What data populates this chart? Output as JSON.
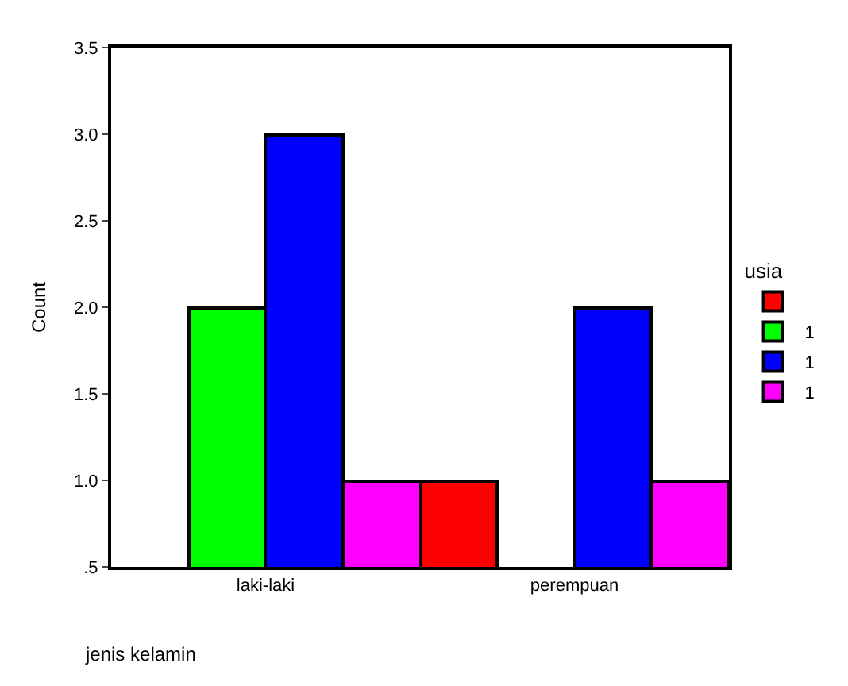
{
  "chart_data": {
    "type": "bar",
    "xlabel": "jenis kelamin",
    "ylabel": "Count",
    "legend_title": "usia",
    "categories": [
      "laki-laki",
      "perempuan"
    ],
    "series": [
      {
        "color": "#ff0000",
        "values": [
          null,
          1
        ]
      },
      {
        "name": "1",
        "color": "#00ff00",
        "values": [
          2,
          null
        ]
      },
      {
        "name": "1",
        "color": "#0000ff",
        "values": [
          3,
          2
        ]
      },
      {
        "name": "1",
        "color": "#ff00ff",
        "values": [
          1,
          1
        ]
      }
    ],
    "ylim": [
      0.5,
      3.5
    ],
    "yticks": [
      {
        "value": 0.5,
        "label": ".5"
      },
      {
        "value": 1.0,
        "label": "1.0"
      },
      {
        "value": 1.5,
        "label": "1.5"
      },
      {
        "value": 2.0,
        "label": "2.0"
      },
      {
        "value": 2.5,
        "label": "2.5"
      },
      {
        "value": 3.0,
        "label": "3.0"
      },
      {
        "value": 3.5,
        "label": "3.5"
      }
    ],
    "legend": "right"
  }
}
